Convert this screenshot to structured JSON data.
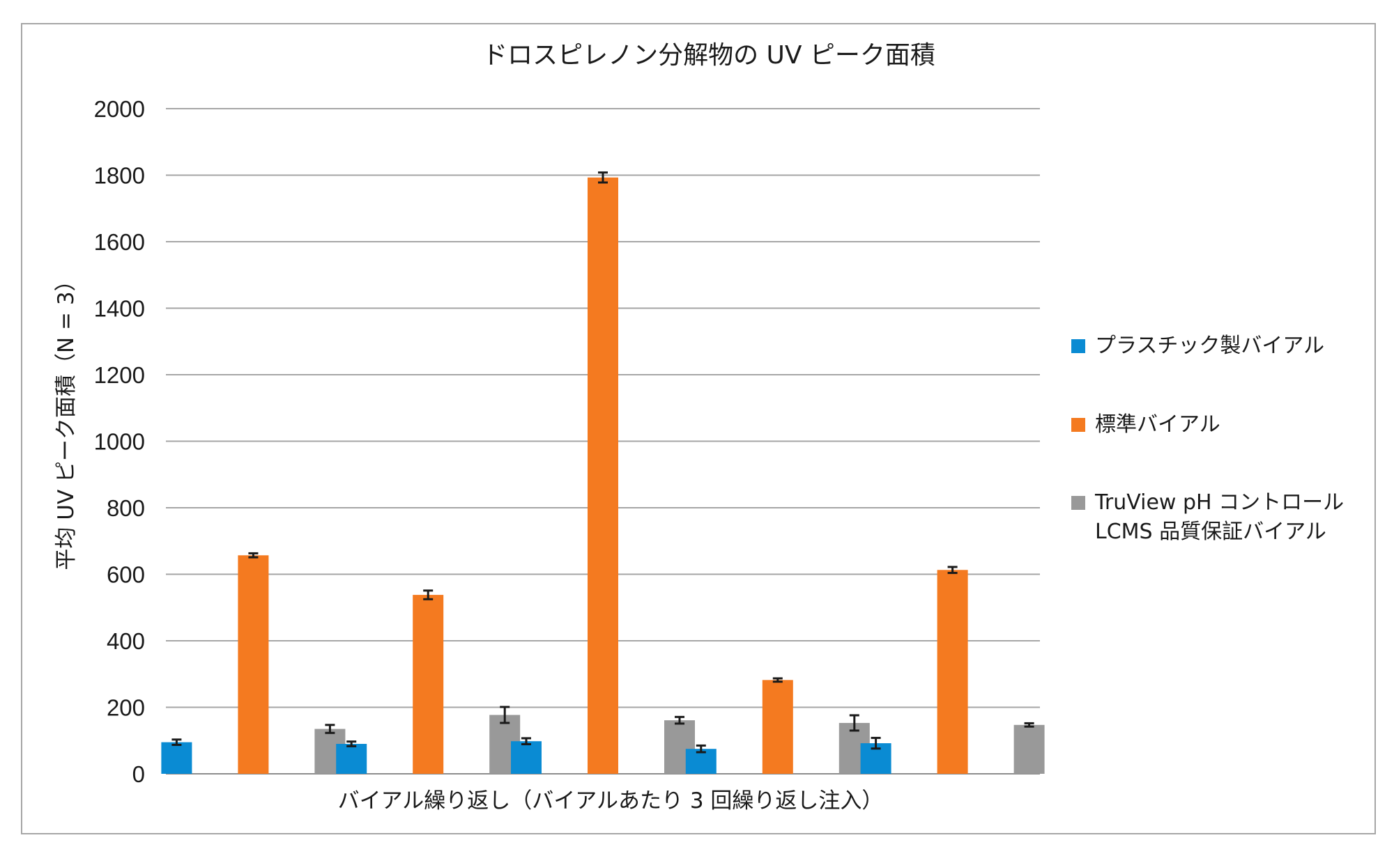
{
  "chart_data": {
    "type": "bar",
    "title": "ドロスピレノン分解物の UV ピーク面積",
    "xlabel": "バイアル繰り返し（バイアルあたり 3 回繰り返し注入）",
    "ylabel": "平均 UV ピーク面積（N = 3）",
    "ylim": [
      0,
      2000
    ],
    "yticks": [
      "0",
      "200",
      "400",
      "600",
      "800",
      "1000",
      "1200",
      "1400",
      "1600",
      "1800",
      "2000"
    ],
    "grid": true,
    "legend_position": "right",
    "categories": [
      "",
      "",
      "",
      "",
      ""
    ],
    "series": [
      {
        "name": "プラスチック製バイアル",
        "color": "#0a8bd3",
        "values": [
          95,
          90,
          98,
          75,
          92
        ],
        "errors": [
          8,
          7,
          9,
          10,
          16
        ]
      },
      {
        "name": "標準バイアル",
        "color": "#f47a20",
        "values": [
          657,
          538,
          1793,
          282,
          613
        ],
        "errors": [
          6,
          13,
          15,
          5,
          9
        ]
      },
      {
        "name": "TruView pH コントロール LCMS 品質保証バイアル",
        "color": "#999999",
        "values": [
          135,
          177,
          161,
          153,
          147
        ],
        "errors": [
          12,
          24,
          10,
          23,
          5
        ]
      }
    ]
  },
  "legend": {
    "items": [
      {
        "line1": "プラスチック製バイアル",
        "line2": ""
      },
      {
        "line1": "標準バイアル",
        "line2": ""
      },
      {
        "line1": "TruView pH コントロール",
        "line2": "LCMS 品質保証バイアル"
      }
    ]
  }
}
